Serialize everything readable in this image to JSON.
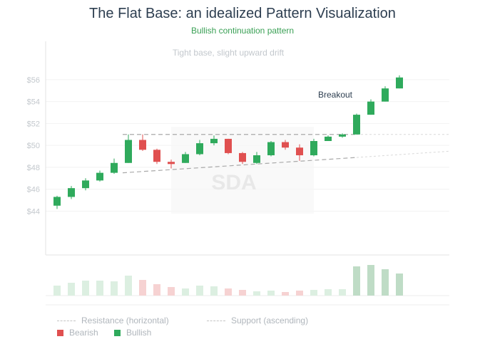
{
  "header": {
    "title": "The Flat Base: an idealized Pattern Visualization",
    "subtitle": "Bullish continuation pattern"
  },
  "colors": {
    "bullish": "#2faa5c",
    "bearish": "#e05050",
    "vol_bullish": "#bfdcc6",
    "vol_bearish": "#f6d2d2",
    "vol_flat": "#dcefe1"
  },
  "chart_data": {
    "type": "candlestick",
    "y_ticks": [
      "$44",
      "$46",
      "$48",
      "$50",
      "$52",
      "$54",
      "$56"
    ],
    "ylim": [
      40,
      59.5
    ],
    "annotations": {
      "base_label": "Tight base, slight upward drift",
      "breakout_label": "Breakout"
    },
    "watermark": "SDA",
    "resistance": {
      "level": 51.0,
      "from_candle": 5,
      "to_candle": 21
    },
    "support": {
      "from_candle": 5,
      "from_value": 47.5,
      "to_candle": 21,
      "to_value": 48.9
    },
    "candles": [
      {
        "o": 44.5,
        "h": 45.4,
        "l": 44.2,
        "c": 45.3
      },
      {
        "o": 45.3,
        "h": 46.3,
        "l": 45.1,
        "c": 46.1
      },
      {
        "o": 46.1,
        "h": 47.0,
        "l": 45.9,
        "c": 46.8
      },
      {
        "o": 46.8,
        "h": 47.7,
        "l": 46.7,
        "c": 47.5
      },
      {
        "o": 47.5,
        "h": 48.8,
        "l": 47.4,
        "c": 48.4
      },
      {
        "o": 48.4,
        "h": 51.0,
        "l": 48.4,
        "c": 50.5
      },
      {
        "o": 50.5,
        "h": 51.0,
        "l": 49.5,
        "c": 49.6
      },
      {
        "o": 49.6,
        "h": 49.7,
        "l": 48.3,
        "c": 48.5
      },
      {
        "o": 48.5,
        "h": 48.7,
        "l": 47.9,
        "c": 48.3
      },
      {
        "o": 48.4,
        "h": 49.4,
        "l": 48.4,
        "c": 49.2
      },
      {
        "o": 49.2,
        "h": 50.5,
        "l": 49.1,
        "c": 50.2
      },
      {
        "o": 50.2,
        "h": 50.9,
        "l": 50.0,
        "c": 50.6
      },
      {
        "o": 50.6,
        "h": 50.6,
        "l": 49.2,
        "c": 49.3
      },
      {
        "o": 49.3,
        "h": 49.4,
        "l": 48.3,
        "c": 48.5
      },
      {
        "o": 48.4,
        "h": 49.4,
        "l": 48.3,
        "c": 49.1
      },
      {
        "o": 49.1,
        "h": 50.4,
        "l": 49.0,
        "c": 50.3
      },
      {
        "o": 50.3,
        "h": 50.5,
        "l": 49.6,
        "c": 49.8
      },
      {
        "o": 49.8,
        "h": 50.1,
        "l": 48.6,
        "c": 49.1
      },
      {
        "o": 49.1,
        "h": 50.6,
        "l": 49.0,
        "c": 50.4
      },
      {
        "o": 50.4,
        "h": 50.9,
        "l": 50.4,
        "c": 50.8
      },
      {
        "o": 50.8,
        "h": 51.1,
        "l": 50.7,
        "c": 51.0
      },
      {
        "o": 51.0,
        "h": 52.9,
        "l": 51.0,
        "c": 52.8
      },
      {
        "o": 52.8,
        "h": 54.2,
        "l": 52.8,
        "c": 54.0
      },
      {
        "o": 54.0,
        "h": 55.4,
        "l": 54.0,
        "c": 55.2
      },
      {
        "o": 55.2,
        "h": 56.4,
        "l": 55.2,
        "c": 56.2
      }
    ],
    "volume": [
      14,
      18,
      21,
      21,
      20,
      28,
      22,
      16,
      12,
      10,
      14,
      13,
      10,
      8,
      6,
      7,
      5,
      7,
      8,
      9,
      9,
      41,
      43,
      37,
      31
    ],
    "legend": [
      {
        "type": "dash",
        "label": "Resistance (horizontal)"
      },
      {
        "type": "dash",
        "label": "Support (ascending)"
      },
      {
        "type": "swatch",
        "label": "Bearish"
      },
      {
        "type": "swatch",
        "label": "Bullish"
      }
    ]
  }
}
